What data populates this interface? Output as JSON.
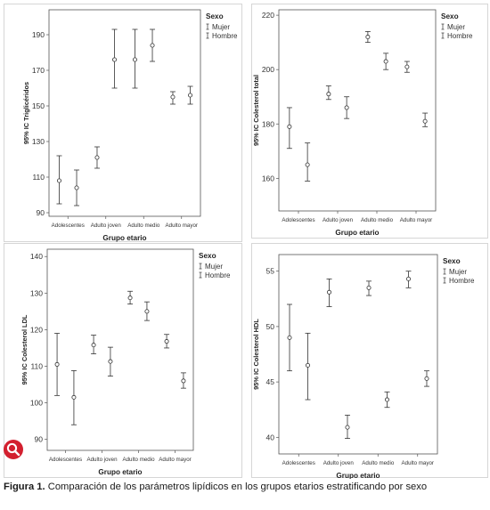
{
  "caption": {
    "prefix": "Figura 1.",
    "text": " Comparación de los parámetros lipídicos en los grupos etarios estratificando por sexo"
  },
  "zoom_button": {
    "icon": "magnifier-icon",
    "color": "#d3202f"
  },
  "legend_title": "Sexo",
  "legend_items": [
    "Mujer",
    "Hombre"
  ],
  "chart_data": [
    {
      "type": "errorbar",
      "title": "",
      "xlabel": "Grupo etario",
      "ylabel": "95% IC Triglicéridos",
      "categories": [
        "Adolescentes",
        "Adulto joven",
        "Adulto medio",
        "Adulto mayor"
      ],
      "ylim": [
        88,
        204
      ],
      "yticks": [
        90,
        110,
        130,
        150,
        170,
        190
      ],
      "grid": false,
      "legend": "top-right",
      "series": [
        {
          "name": "Mujer",
          "mean": [
            108,
            121,
            176,
            155
          ],
          "low": [
            95,
            115,
            160,
            151
          ],
          "high": [
            122,
            127,
            193,
            158
          ]
        },
        {
          "name": "Hombre",
          "mean": [
            104,
            176,
            184,
            156
          ],
          "low": [
            94,
            160,
            175,
            151
          ],
          "high": [
            114,
            193,
            193,
            161
          ]
        }
      ]
    },
    {
      "type": "errorbar",
      "title": "",
      "xlabel": "Grupo etario",
      "ylabel": "95% IC Colesterol total",
      "categories": [
        "Adolescentes",
        "Adulto joven",
        "Adulto medio",
        "Adulto mayor"
      ],
      "ylim": [
        148,
        222
      ],
      "yticks": [
        160,
        180,
        200,
        220
      ],
      "grid": false,
      "legend": "top-right",
      "series": [
        {
          "name": "Mujer",
          "mean": [
            179,
            191,
            212,
            201
          ],
          "low": [
            171,
            189,
            210,
            199
          ],
          "high": [
            186,
            194,
            214,
            203
          ]
        },
        {
          "name": "Hombre",
          "mean": [
            165,
            186,
            203,
            181
          ],
          "low": [
            159,
            182,
            200,
            179
          ],
          "high": [
            173,
            190,
            206,
            184
          ]
        }
      ]
    },
    {
      "type": "errorbar",
      "title": "",
      "xlabel": "Grupo etario",
      "ylabel": "95% IC Colesterol LDL",
      "categories": [
        "Adolescentes",
        "Adulto joven",
        "Adulto medio",
        "Adulto mayor"
      ],
      "ylim": [
        87,
        142
      ],
      "yticks": [
        90,
        100,
        110,
        120,
        130,
        140
      ],
      "grid": false,
      "legend": "top-right",
      "series": [
        {
          "name": "Mujer",
          "mean": [
            110.5,
            115.8,
            128.7,
            116.8
          ],
          "low": [
            102,
            113.4,
            127,
            115
          ],
          "high": [
            119,
            118.5,
            130.5,
            118.7
          ]
        },
        {
          "name": "Hombre",
          "mean": [
            101.5,
            111.3,
            125,
            106
          ],
          "low": [
            94,
            107.3,
            122.5,
            104
          ],
          "high": [
            108.8,
            115.2,
            127.6,
            108.2
          ]
        }
      ]
    },
    {
      "type": "errorbar",
      "title": "",
      "xlabel": "Grupo etario",
      "ylabel": "95% IC Colesterol HDL",
      "categories": [
        "Adolescentes",
        "Adulto joven",
        "Adulto medio",
        "Adulto mayor"
      ],
      "ylim": [
        38.5,
        56.5
      ],
      "yticks": [
        40,
        45,
        50,
        55
      ],
      "grid": false,
      "legend": "top-right",
      "series": [
        {
          "name": "Mujer",
          "mean": [
            49,
            53.1,
            53.5,
            54.3
          ],
          "low": [
            46,
            51.8,
            52.8,
            53.5
          ],
          "high": [
            52,
            54.3,
            54.1,
            55
          ]
        },
        {
          "name": "Hombre",
          "mean": [
            46.5,
            40.9,
            43.4,
            45.3
          ],
          "low": [
            43.4,
            39.9,
            42.7,
            44.6
          ],
          "high": [
            49.4,
            42,
            44.1,
            46
          ]
        }
      ]
    }
  ]
}
